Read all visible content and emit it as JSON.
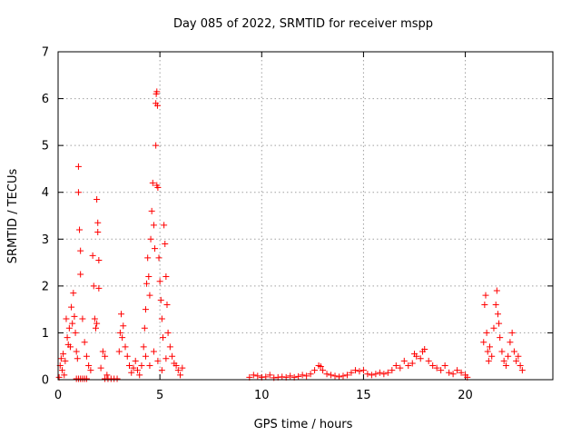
{
  "chart_data": {
    "type": "scatter",
    "title": "Day 085 of 2022, SRMTID for receiver mspp",
    "xlabel": "GPS time / hours",
    "ylabel": "SRMTID / TECUs",
    "xlim": [
      0,
      24.3
    ],
    "ylim": [
      0,
      7
    ],
    "xticks": [
      0,
      5,
      10,
      15,
      20
    ],
    "yticks": [
      0,
      1,
      2,
      3,
      4,
      5,
      6,
      7
    ],
    "grid": true,
    "marker": "+",
    "color": "#ff0000",
    "series": [
      {
        "name": "SRMTID",
        "points": [
          [
            0.05,
            0.05
          ],
          [
            0.1,
            0.3
          ],
          [
            0.15,
            0.45
          ],
          [
            0.2,
            0.2
          ],
          [
            0.25,
            0.55
          ],
          [
            0.3,
            0.1
          ],
          [
            0.35,
            0.4
          ],
          [
            0.4,
            1.3
          ],
          [
            0.45,
            0.9
          ],
          [
            0.5,
            0.75
          ],
          [
            0.55,
            1.1
          ],
          [
            0.6,
            0.7
          ],
          [
            0.65,
            1.55
          ],
          [
            0.7,
            1.2
          ],
          [
            0.75,
            1.85
          ],
          [
            0.8,
            1.35
          ],
          [
            0.85,
            1.0
          ],
          [
            0.9,
            0.6
          ],
          [
            0.95,
            0.45
          ],
          [
            1.0,
            4.55
          ],
          [
            1.0,
            4.0
          ],
          [
            1.05,
            3.2
          ],
          [
            1.1,
            2.75
          ],
          [
            1.1,
            2.25
          ],
          [
            1.2,
            1.3
          ],
          [
            1.3,
            0.8
          ],
          [
            1.4,
            0.5
          ],
          [
            1.5,
            0.3
          ],
          [
            1.6,
            0.2
          ],
          [
            1.7,
            2.65
          ],
          [
            1.75,
            2.0
          ],
          [
            1.8,
            1.3
          ],
          [
            1.85,
            1.1
          ],
          [
            1.9,
            1.2
          ],
          [
            1.9,
            3.85
          ],
          [
            1.95,
            3.35
          ],
          [
            1.95,
            3.15
          ],
          [
            2.0,
            2.55
          ],
          [
            2.0,
            1.95
          ],
          [
            2.1,
            0.25
          ],
          [
            2.2,
            0.6
          ],
          [
            2.3,
            0.5
          ],
          [
            2.4,
            0.1
          ],
          [
            0.9,
            0.02
          ],
          [
            1.0,
            0.02
          ],
          [
            1.1,
            0.02
          ],
          [
            1.2,
            0.02
          ],
          [
            1.3,
            0.02
          ],
          [
            1.4,
            0.02
          ],
          [
            2.3,
            0.02
          ],
          [
            2.45,
            0.02
          ],
          [
            2.6,
            0.02
          ],
          [
            2.75,
            0.02
          ],
          [
            2.9,
            0.02
          ],
          [
            3.0,
            0.6
          ],
          [
            3.05,
            1.0
          ],
          [
            3.1,
            1.4
          ],
          [
            3.15,
            0.9
          ],
          [
            3.2,
            1.15
          ],
          [
            3.3,
            0.7
          ],
          [
            3.4,
            0.5
          ],
          [
            3.5,
            0.3
          ],
          [
            3.6,
            0.15
          ],
          [
            3.7,
            0.25
          ],
          [
            3.8,
            0.4
          ],
          [
            3.9,
            0.2
          ],
          [
            4.0,
            0.1
          ],
          [
            4.1,
            0.3
          ],
          [
            4.2,
            0.7
          ],
          [
            4.25,
            1.1
          ],
          [
            4.3,
            1.5
          ],
          [
            4.35,
            2.05
          ],
          [
            4.4,
            2.6
          ],
          [
            4.45,
            2.2
          ],
          [
            4.5,
            1.8
          ],
          [
            4.55,
            3.0
          ],
          [
            4.6,
            3.6
          ],
          [
            4.65,
            4.2
          ],
          [
            4.7,
            3.3
          ],
          [
            4.75,
            2.8
          ],
          [
            4.8,
            5.9
          ],
          [
            4.82,
            6.1
          ],
          [
            4.85,
            6.15
          ],
          [
            4.88,
            5.85
          ],
          [
            4.8,
            5.0
          ],
          [
            4.85,
            4.15
          ],
          [
            4.9,
            4.1
          ],
          [
            4.95,
            2.6
          ],
          [
            5.0,
            2.1
          ],
          [
            5.05,
            1.7
          ],
          [
            5.1,
            1.3
          ],
          [
            5.15,
            0.9
          ],
          [
            5.2,
            3.3
          ],
          [
            5.25,
            2.9
          ],
          [
            5.3,
            2.2
          ],
          [
            5.35,
            1.6
          ],
          [
            5.4,
            1.0
          ],
          [
            5.5,
            0.7
          ],
          [
            5.6,
            0.5
          ],
          [
            5.7,
            0.35
          ],
          [
            5.8,
            0.3
          ],
          [
            5.9,
            0.2
          ],
          [
            6.0,
            0.1
          ],
          [
            6.1,
            0.25
          ],
          [
            4.3,
            0.5
          ],
          [
            4.5,
            0.3
          ],
          [
            4.7,
            0.6
          ],
          [
            4.9,
            0.4
          ],
          [
            5.1,
            0.2
          ],
          [
            5.3,
            0.45
          ],
          [
            9.4,
            0.05
          ],
          [
            9.6,
            0.1
          ],
          [
            9.8,
            0.08
          ],
          [
            10.0,
            0.05
          ],
          [
            10.2,
            0.06
          ],
          [
            10.4,
            0.1
          ],
          [
            10.6,
            0.04
          ],
          [
            10.8,
            0.05
          ],
          [
            11.0,
            0.06
          ],
          [
            11.2,
            0.05
          ],
          [
            11.4,
            0.08
          ],
          [
            11.6,
            0.05
          ],
          [
            11.8,
            0.07
          ],
          [
            12.0,
            0.1
          ],
          [
            12.2,
            0.08
          ],
          [
            12.4,
            0.12
          ],
          [
            12.6,
            0.2
          ],
          [
            12.8,
            0.3
          ],
          [
            12.9,
            0.28
          ],
          [
            13.0,
            0.2
          ],
          [
            13.2,
            0.12
          ],
          [
            13.4,
            0.1
          ],
          [
            13.6,
            0.08
          ],
          [
            13.8,
            0.06
          ],
          [
            14.0,
            0.08
          ],
          [
            14.2,
            0.1
          ],
          [
            14.4,
            0.15
          ],
          [
            14.6,
            0.2
          ],
          [
            14.8,
            0.18
          ],
          [
            15.0,
            0.2
          ],
          [
            15.2,
            0.12
          ],
          [
            15.4,
            0.1
          ],
          [
            15.6,
            0.12
          ],
          [
            15.8,
            0.15
          ],
          [
            16.0,
            0.12
          ],
          [
            16.2,
            0.15
          ],
          [
            16.4,
            0.2
          ],
          [
            16.6,
            0.3
          ],
          [
            16.8,
            0.25
          ],
          [
            17.0,
            0.4
          ],
          [
            17.2,
            0.3
          ],
          [
            17.4,
            0.35
          ],
          [
            17.5,
            0.55
          ],
          [
            17.6,
            0.5
          ],
          [
            17.8,
            0.45
          ],
          [
            17.9,
            0.6
          ],
          [
            18.0,
            0.65
          ],
          [
            18.2,
            0.4
          ],
          [
            18.4,
            0.3
          ],
          [
            18.6,
            0.25
          ],
          [
            18.8,
            0.2
          ],
          [
            19.0,
            0.3
          ],
          [
            19.2,
            0.15
          ],
          [
            19.4,
            0.12
          ],
          [
            19.6,
            0.2
          ],
          [
            19.8,
            0.15
          ],
          [
            20.0,
            0.1
          ],
          [
            20.1,
            0.05
          ],
          [
            20.9,
            0.8
          ],
          [
            20.95,
            1.6
          ],
          [
            21.0,
            1.8
          ],
          [
            21.05,
            1.0
          ],
          [
            21.1,
            0.6
          ],
          [
            21.15,
            0.4
          ],
          [
            21.2,
            0.7
          ],
          [
            21.3,
            0.5
          ],
          [
            21.4,
            1.1
          ],
          [
            21.5,
            1.6
          ],
          [
            21.55,
            1.9
          ],
          [
            21.6,
            1.4
          ],
          [
            21.65,
            1.2
          ],
          [
            21.7,
            0.9
          ],
          [
            21.8,
            0.6
          ],
          [
            21.9,
            0.4
          ],
          [
            22.0,
            0.3
          ],
          [
            22.1,
            0.5
          ],
          [
            22.2,
            0.8
          ],
          [
            22.3,
            1.0
          ],
          [
            22.4,
            0.6
          ],
          [
            22.5,
            0.4
          ],
          [
            22.6,
            0.5
          ],
          [
            22.7,
            0.3
          ],
          [
            22.8,
            0.2
          ]
        ]
      }
    ]
  }
}
